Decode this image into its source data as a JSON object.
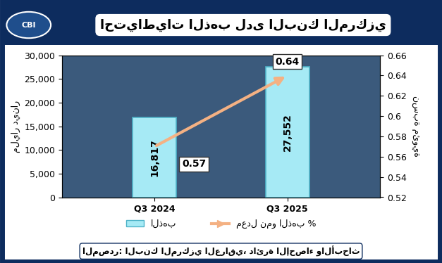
{
  "chart_data": {
    "type": "bar",
    "title": "احتياطيات الذهب لدى البنك المركزي",
    "logo": "CBI",
    "source": "المصدر: البنك المركزي العراقي، دائرة الإحصاء والأبحاث",
    "categories": [
      "Q3 2024",
      "Q3 2025"
    ],
    "y_label": "مليار دينار",
    "y2_label": "نسبة مئوية",
    "series": [
      {
        "name": "الذهب",
        "type": "bar",
        "color": "#A6EAF5",
        "values": [
          16817,
          27552
        ],
        "value_labels": [
          "16,817",
          "27,552"
        ]
      },
      {
        "name": "معدل نمو الذهب %",
        "type": "line",
        "axis": "y2",
        "color": "#F4B183",
        "marker": "none",
        "line_style": "arrow",
        "values": [
          0.57,
          0.64
        ]
      }
    ],
    "ylim": [
      0,
      30000
    ],
    "yticks": [
      0,
      {
        "value": 5000,
        "label": "5,000"
      },
      {
        "value": 10000,
        "label": "10,000"
      },
      {
        "value": 15000,
        "label": "15,000"
      },
      {
        "value": 20000,
        "label": "20,000"
      },
      {
        "value": 25000,
        "label": "25,000"
      },
      {
        "value": 30000,
        "label": "30,000"
      }
    ],
    "y2lim": [
      0.52,
      0.66
    ],
    "y2ticks": [
      0.52,
      0.54,
      0.56,
      0.58,
      0.6,
      0.62,
      0.64,
      0.66
    ],
    "data_labels": true,
    "legend": "lower center",
    "grid": false
  }
}
